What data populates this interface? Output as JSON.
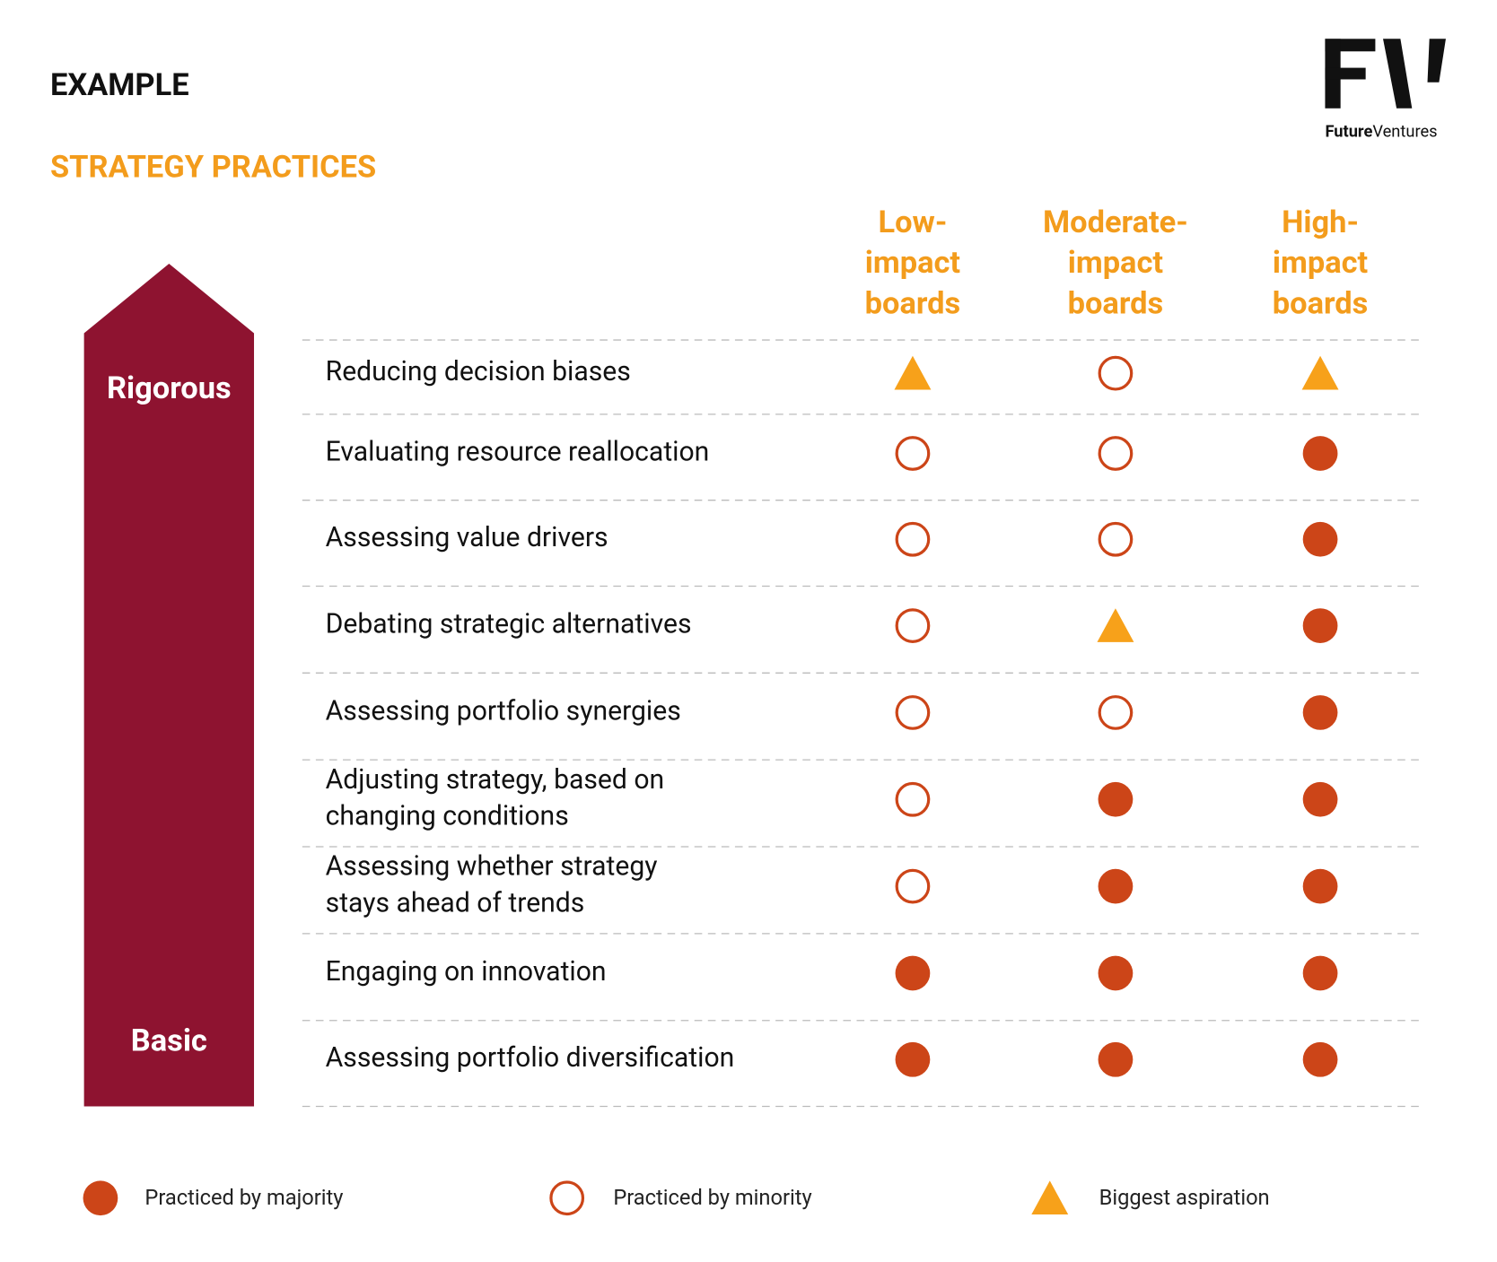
{
  "header": {
    "label": "EXAMPLE",
    "title": "STRATEGY PRACTICES"
  },
  "logo": {
    "word1": "Future",
    "word2": "Ventures"
  },
  "scale": {
    "top": "Rigorous",
    "bottom": "Basic"
  },
  "table": {
    "columns": [
      [
        "Low-",
        "impact",
        "boards"
      ],
      [
        "Moderate-",
        "impact",
        "boards"
      ],
      [
        "High-",
        "impact",
        "boards"
      ]
    ],
    "rows": [
      {
        "label": [
          "Reducing decision biases"
        ],
        "cells": [
          2,
          1,
          2
        ]
      },
      {
        "label": [
          "Evaluating resource reallocation"
        ],
        "cells": [
          1,
          1,
          0
        ]
      },
      {
        "label": [
          "Assessing value drivers"
        ],
        "cells": [
          1,
          1,
          0
        ]
      },
      {
        "label": [
          "Debating strategic alternatives"
        ],
        "cells": [
          1,
          2,
          0
        ]
      },
      {
        "label": [
          "Assessing portfolio synergies"
        ],
        "cells": [
          1,
          1,
          0
        ]
      },
      {
        "label": [
          "Adjusting strategy, based on",
          "changing conditions"
        ],
        "cells": [
          1,
          0,
          0
        ]
      },
      {
        "label": [
          "Assessing whether strategy",
          "stays ahead of trends"
        ],
        "cells": [
          1,
          0,
          0
        ]
      },
      {
        "label": [
          "Engaging on innovation"
        ],
        "cells": [
          0,
          0,
          0
        ]
      },
      {
        "label": [
          "Assessing portfolio diversification"
        ],
        "cells": [
          0,
          0,
          0
        ]
      }
    ]
  },
  "legend": [
    "Practiced by majority",
    "Practiced by minority",
    "Biggest aspiration"
  ]
}
